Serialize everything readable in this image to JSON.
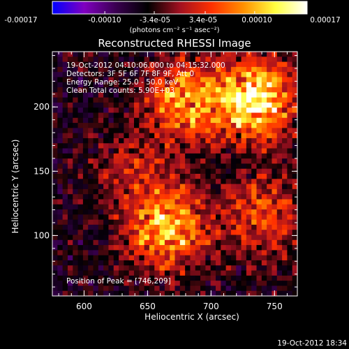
{
  "window": {
    "title": "Reconstructed RHESSI Image"
  },
  "colorbar": {
    "ticks": [
      "-0.00017",
      "-0.00010",
      "-3.4e-05",
      "3.4e-05",
      "0.00010",
      "0.00017"
    ],
    "tick_values": [
      -0.00017,
      -0.0001,
      -3.4e-05,
      3.4e-05,
      0.0001,
      0.00017
    ],
    "units": "(photons cm⁻² s⁻¹ asec⁻²)",
    "range": [
      -0.00017,
      0.00017
    ],
    "colors": [
      "#0000ff",
      "#8000c0",
      "#3a0050",
      "#000000",
      "#a01020",
      "#ff3000",
      "#ff9000",
      "#ffff40",
      "#ffffff"
    ]
  },
  "annotations": {
    "time": "19-Oct-2012 04:10:06.000 to 04:15:32.000",
    "detectors": "Detectors: 3F 5F 6F 7F 8F 9F, Att 0",
    "energy": "Energy Range: 25.0 - 50.0 keV",
    "clean": "Clean    Total counts: 5.90E+03",
    "peak": "Position of Peak = [746,209]"
  },
  "axes": {
    "xlabel": "Heliocentric X (arcsec)",
    "ylabel": "Heliocentric Y (arcsec)",
    "xticks": [
      "600",
      "650",
      "700",
      "750"
    ],
    "yticks": [
      "100",
      "150",
      "200"
    ],
    "xlim": [
      575,
      768
    ],
    "ylim": [
      53,
      243
    ]
  },
  "footer": {
    "timestamp": "19-Oct-2012 18:34"
  },
  "chart_data": {
    "type": "heatmap",
    "title": "Reconstructed RHESSI Image",
    "xlabel": "Heliocentric X (arcsec)",
    "ylabel": "Heliocentric Y (arcsec)",
    "xlim": [
      575,
      768
    ],
    "ylim": [
      53,
      243
    ],
    "x_ticks": [
      600,
      650,
      700,
      750
    ],
    "y_ticks": [
      100,
      150,
      200
    ],
    "value_range": [
      -0.00017,
      0.00017
    ],
    "peak": [
      746,
      209
    ],
    "sources": [
      {
        "x": 735,
        "y": 205,
        "intensity": 1.0
      },
      {
        "x": 680,
        "y": 205,
        "intensity": 0.7
      },
      {
        "x": 665,
        "y": 105,
        "intensity": 0.8
      },
      {
        "x": 740,
        "y": 115,
        "intensity": 0.5
      },
      {
        "x": 640,
        "y": 150,
        "intensity": 0.3
      }
    ]
  }
}
